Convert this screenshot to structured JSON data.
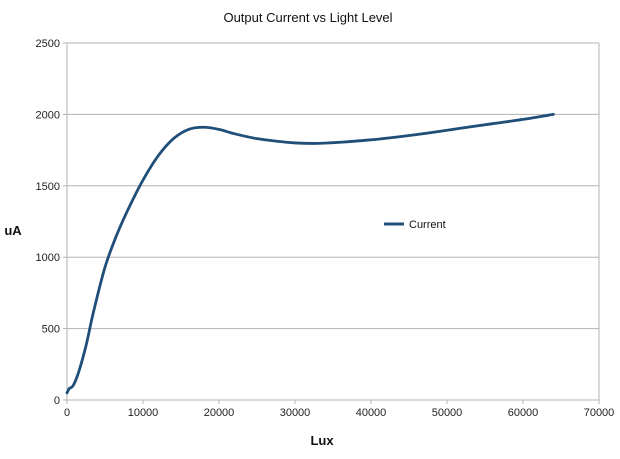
{
  "chart_data": {
    "type": "line",
    "title": "Output Current vs Light Level",
    "xlabel": "Lux",
    "ylabel": "uA",
    "xlim": [
      0,
      70000
    ],
    "ylim": [
      0,
      2500
    ],
    "xticks": [
      0,
      10000,
      20000,
      30000,
      40000,
      50000,
      60000,
      70000
    ],
    "yticks": [
      0,
      500,
      1000,
      1500,
      2000,
      2500
    ],
    "grid": {
      "horizontal": true,
      "vertical": false
    },
    "legend": {
      "placement": "center-right"
    },
    "series": [
      {
        "name": "Current",
        "color": "#1f4e79",
        "points": [
          [
            0,
            50
          ],
          [
            300,
            80
          ],
          [
            800,
            100
          ],
          [
            1500,
            190
          ],
          [
            2500,
            380
          ],
          [
            3500,
            620
          ],
          [
            5000,
            930
          ],
          [
            6500,
            1150
          ],
          [
            8000,
            1330
          ],
          [
            10000,
            1540
          ],
          [
            12000,
            1710
          ],
          [
            14000,
            1830
          ],
          [
            16000,
            1895
          ],
          [
            18000,
            1910
          ],
          [
            20000,
            1895
          ],
          [
            22000,
            1865
          ],
          [
            25000,
            1830
          ],
          [
            28000,
            1810
          ],
          [
            30000,
            1800
          ],
          [
            33000,
            1797
          ],
          [
            36000,
            1805
          ],
          [
            40000,
            1822
          ],
          [
            44000,
            1845
          ],
          [
            48000,
            1873
          ],
          [
            52000,
            1905
          ],
          [
            56000,
            1935
          ],
          [
            60000,
            1965
          ],
          [
            64000,
            2000
          ]
        ]
      }
    ]
  }
}
